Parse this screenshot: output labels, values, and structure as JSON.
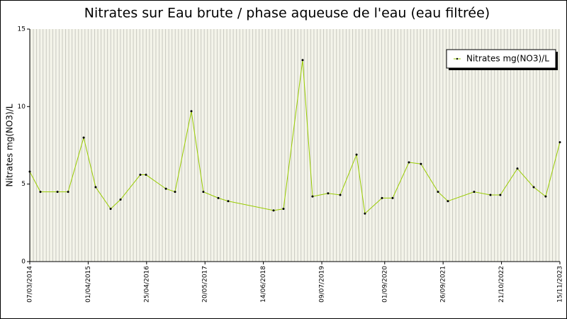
{
  "chart_data": {
    "type": "line",
    "title": "Nitrates sur Eau brute / phase aqueuse de l'eau (eau filtrée)",
    "y_label": "Nitrates mg(NO3)/L",
    "x": [
      "2014-03-07",
      "2014-05-17",
      "2014-09-08",
      "2014-11-18",
      "2015-03-02",
      "2015-05-21",
      "2015-08-29",
      "2015-11-03",
      "2016-03-14",
      "2016-04-21",
      "2016-09-01",
      "2016-11-01",
      "2017-02-18",
      "2017-05-09",
      "2017-08-17",
      "2017-10-22",
      "2018-08-21",
      "2018-10-26",
      "2019-03-03",
      "2019-05-08",
      "2019-08-20",
      "2019-11-09",
      "2020-02-26",
      "2020-04-22",
      "2020-08-14",
      "2020-10-24",
      "2021-02-10",
      "2021-05-01",
      "2021-08-23",
      "2021-10-28",
      "2022-04-21",
      "2022-08-08",
      "2022-10-13",
      "2023-02-04",
      "2023-05-24",
      "2023-08-12",
      "2023-11-15"
    ],
    "series": [
      {
        "name": "Nitrates mg(NO3)/L",
        "color": "#99cc00",
        "values": [
          5.8,
          4.5,
          4.5,
          4.5,
          8.0,
          4.8,
          3.4,
          4.0,
          5.6,
          5.6,
          4.7,
          4.5,
          9.7,
          4.5,
          4.1,
          3.9,
          3.3,
          3.4,
          13.0,
          4.2,
          4.4,
          4.3,
          6.9,
          3.1,
          4.1,
          4.1,
          6.4,
          6.3,
          4.5,
          3.9,
          4.5,
          4.3,
          4.3,
          6.0,
          4.8,
          4.2,
          7.7
        ]
      }
    ],
    "xlim": [
      "2014-03-07",
      "2023-11-15"
    ],
    "xticks": [
      {
        "value": "2014-03-07",
        "label": "07/03/2014"
      },
      {
        "value": "2015-04-01",
        "label": "01/04/2015"
      },
      {
        "value": "2016-04-25",
        "label": "25/04/2016"
      },
      {
        "value": "2017-05-20",
        "label": "20/05/2017"
      },
      {
        "value": "2018-06-14",
        "label": "14/06/2018"
      },
      {
        "value": "2019-07-09",
        "label": "09/07/2019"
      },
      {
        "value": "2020-09-01",
        "label": "01/09/2020"
      },
      {
        "value": "2021-09-26",
        "label": "26/09/2021"
      },
      {
        "value": "2022-10-21",
        "label": "21/10/2022"
      },
      {
        "value": "2023-11-15",
        "label": "15/11/2023"
      }
    ],
    "ylim": [
      0,
      15
    ],
    "yticks": [
      0,
      5,
      10,
      15
    ],
    "legend": "top-right"
  }
}
